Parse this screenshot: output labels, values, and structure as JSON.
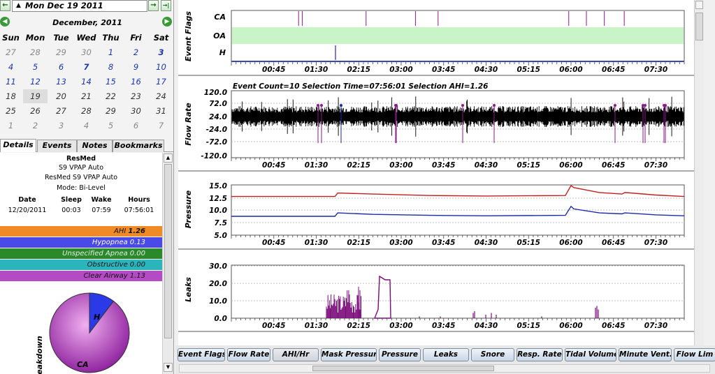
{
  "date_nav": {
    "current_date": "Mon Dec 19 2011",
    "prev_glyph": "←",
    "next_glyph": "→",
    "last_glyph": "→|",
    "dropdown_glyph": "▲"
  },
  "calendar": {
    "month_title": "December, 2011",
    "prev_glyph": "◀",
    "next_glyph": "▶",
    "weekdays": [
      "Sun",
      "Mon",
      "Tue",
      "Wed",
      "Thu",
      "Fri",
      "Sat"
    ],
    "weeks": [
      [
        "27",
        "28",
        "29",
        "30",
        "1",
        "2",
        "3"
      ],
      [
        "4",
        "5",
        "6",
        "7",
        "8",
        "9",
        "10"
      ],
      [
        "11",
        "12",
        "13",
        "14",
        "15",
        "16",
        "17"
      ],
      [
        "18",
        "19",
        "20",
        "21",
        "22",
        "23",
        "24"
      ],
      [
        "25",
        "26",
        "27",
        "28",
        "29",
        "30",
        "31"
      ],
      [
        "1",
        "2",
        "3",
        "4",
        "5",
        "6",
        "7"
      ]
    ]
  },
  "tabs": [
    "Details",
    "Events",
    "Notes",
    "Bookmarks"
  ],
  "details": {
    "brand": "ResMed",
    "model": "S9 VPAP Auto",
    "device": "ResMed S9 VPAP Auto",
    "mode": "Mode: Bi-Level",
    "columns": [
      "Date",
      "Sleep",
      "Wake",
      "Hours"
    ],
    "values": [
      "12/20/2011",
      "00:03",
      "07:59",
      "07:56:01"
    ],
    "stats": [
      {
        "label": "AHI",
        "value": "1.26",
        "color": "#f08a24"
      },
      {
        "label": "Hypopnea",
        "value": "0.13",
        "color": "#4a4ae8"
      },
      {
        "label": "Unspecified Apnea",
        "value": "0.00",
        "color": "#2a8a2a"
      },
      {
        "label": "Obstructive",
        "value": "0.00",
        "color": "#2ab4bc"
      },
      {
        "label": "Clear Airway",
        "value": "1.13",
        "color": "#b44ac4"
      }
    ],
    "breakdown_label": "Breakdown",
    "pie_labels": {
      "h": "H",
      "ca": "CA"
    },
    "pie": [
      {
        "label": "CA",
        "value": 1.13,
        "color": "#b43ab8"
      },
      {
        "label": "H",
        "value": 0.13,
        "color": "#2a3ae8"
      }
    ]
  },
  "time_axis": [
    "00:45",
    "01:30",
    "02:15",
    "03:00",
    "03:45",
    "04:30",
    "05:15",
    "06:00",
    "06:45",
    "07:30"
  ],
  "graphs": {
    "event_flags": {
      "ylabel": "Event Flags",
      "rows": [
        "CA",
        "OA",
        "H"
      ],
      "ca_events": [
        0.297,
        0.313,
        0.595,
        0.813,
        0.913,
        1.49,
        1.568,
        1.647,
        1.735
      ],
      "h_events": [
        0.365
      ]
    },
    "flow_rate": {
      "ylabel": "Flow Rate",
      "info": "Event Count=10 Selection Time=07:56:01 Selection AHI=1.26",
      "ticks": [
        "120.0",
        "72.0",
        "24.0",
        "-24.0",
        "-72.0",
        "-120.0"
      ]
    },
    "pressure": {
      "ylabel": "Pressure",
      "ticks": [
        "15.0",
        "12.5",
        "10.0",
        "7.5",
        "5.0"
      ]
    },
    "leaks": {
      "ylabel": "Leaks",
      "ticks": [
        "30.0",
        "20.0",
        "10.0",
        "0.0"
      ]
    }
  },
  "chart_data": [
    {
      "type": "line",
      "title": "Pressure",
      "ylabel": "Pressure",
      "ylim": [
        5,
        15
      ],
      "x": [
        "00:03",
        "01:55",
        "06:00",
        "06:45",
        "07:59"
      ],
      "series": [
        {
          "color": "#c02020",
          "values": [
            12.8,
            13.5,
            15.0,
            13.5,
            12.8
          ]
        },
        {
          "color": "#1a2aa8",
          "values": [
            8.8,
            9.5,
            10.8,
            9.3,
            8.9
          ]
        }
      ]
    },
    {
      "type": "area",
      "title": "Leaks",
      "ylabel": "Leaks",
      "ylim": [
        0,
        30
      ],
      "x": [
        "01:50",
        "02:10",
        "02:20",
        "02:25",
        "02:40",
        "04:25",
        "06:25"
      ],
      "series": [
        {
          "color": "#7a0a7a",
          "values": [
            12,
            15,
            18,
            12,
            22,
            3,
            6
          ]
        }
      ]
    }
  ],
  "bottom_buttons": [
    "Event Flags",
    "Flow Rate",
    "AHI/Hr",
    "Mask Pressure",
    "Pressure",
    "Leaks",
    "Snore",
    "Resp. Rate",
    "Tidal Volume",
    "Minute Vent.",
    "Flow Lim"
  ]
}
